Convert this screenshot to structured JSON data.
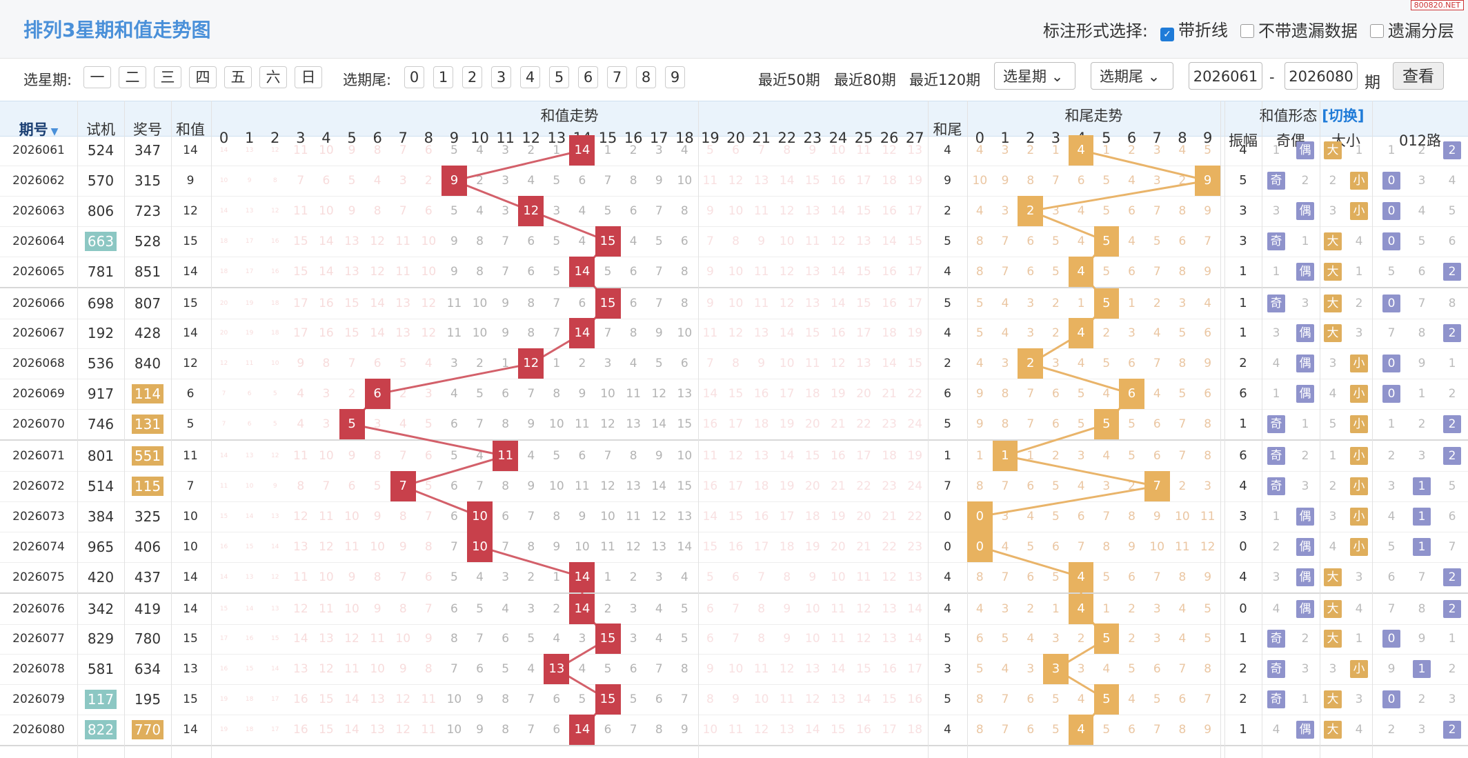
{
  "title": "排列3星期和值走势图",
  "site_badge": "800820.NET",
  "mark_type": {
    "label": "标注形式选择:",
    "options": [
      {
        "label": "带折线",
        "checked": true
      },
      {
        "label": "不带遗漏数据",
        "checked": false
      },
      {
        "label": "遗漏分层",
        "checked": false
      }
    ]
  },
  "filters": {
    "weekday_label": "选星期:",
    "weekdays": [
      "一",
      "二",
      "三",
      "四",
      "五",
      "六",
      "日"
    ],
    "tail_label": "选期尾:",
    "tails": [
      "0",
      "1",
      "2",
      "3",
      "4",
      "5",
      "6",
      "7",
      "8",
      "9"
    ],
    "recent": [
      "最近50期",
      "最近80期",
      "最近120期"
    ],
    "weekday_select": "选星期",
    "tail_select": "选期尾",
    "from": "2026061",
    "dash": "-",
    "to": "2026080",
    "period_suffix": "期",
    "go": "查看"
  },
  "headers": {
    "issue": "期号",
    "test": "试机",
    "prize": "奖号",
    "sum": "和值",
    "sum_trend": "和值走势",
    "sum_tail": "和尾",
    "tail_trend": "和尾走势",
    "shape": "和值形态",
    "switch": "[切换]",
    "amp": "振幅",
    "odd_even": "奇偶",
    "big_small": "大小",
    "route": "012路"
  },
  "sum_cols": [
    "0",
    "1",
    "2",
    "3",
    "4",
    "5",
    "6",
    "7",
    "8",
    "9",
    "10",
    "11",
    "12",
    "13",
    "14",
    "15",
    "16",
    "17",
    "18",
    "19",
    "20",
    "21",
    "22",
    "23",
    "24",
    "25",
    "26",
    "27"
  ],
  "tail_cols": [
    "0",
    "1",
    "2",
    "3",
    "4",
    "5",
    "6",
    "7",
    "8",
    "9"
  ],
  "rows": [
    {
      "issue": "2026061",
      "test": "524",
      "prize": "347",
      "sum": "14",
      "tail": "4",
      "amp": "4",
      "oe": "偶",
      "bs": "大",
      "route": "2"
    },
    {
      "issue": "2026062",
      "test": "570",
      "prize": "315",
      "sum": "9",
      "tail": "9",
      "amp": "5",
      "oe": "奇",
      "bs": "小",
      "route": "0"
    },
    {
      "issue": "2026063",
      "test": "806",
      "prize": "723",
      "sum": "12",
      "tail": "2",
      "amp": "3",
      "oe": "偶",
      "bs": "小",
      "route": "0"
    },
    {
      "issue": "2026064",
      "test": "663",
      "prize": "528",
      "sum": "15",
      "tail": "5",
      "amp": "3",
      "oe": "奇",
      "bs": "大",
      "route": "0",
      "test_hl": "teal"
    },
    {
      "issue": "2026065",
      "test": "781",
      "prize": "851",
      "sum": "14",
      "tail": "4",
      "amp": "1",
      "oe": "偶",
      "bs": "大",
      "route": "2"
    },
    {
      "issue": "2026066",
      "test": "698",
      "prize": "807",
      "sum": "15",
      "tail": "5",
      "amp": "1",
      "oe": "奇",
      "bs": "大",
      "route": "0"
    },
    {
      "issue": "2026067",
      "test": "192",
      "prize": "428",
      "sum": "14",
      "tail": "4",
      "amp": "1",
      "oe": "偶",
      "bs": "大",
      "route": "2"
    },
    {
      "issue": "2026068",
      "test": "536",
      "prize": "840",
      "sum": "12",
      "tail": "2",
      "amp": "2",
      "oe": "偶",
      "bs": "小",
      "route": "0"
    },
    {
      "issue": "2026069",
      "test": "917",
      "prize": "114",
      "sum": "6",
      "tail": "6",
      "amp": "6",
      "oe": "偶",
      "bs": "小",
      "route": "0",
      "prize_hl": "orange"
    },
    {
      "issue": "2026070",
      "test": "746",
      "prize": "131",
      "sum": "5",
      "tail": "5",
      "amp": "1",
      "oe": "奇",
      "bs": "小",
      "route": "2",
      "prize_hl": "orange"
    },
    {
      "issue": "2026071",
      "test": "801",
      "prize": "551",
      "sum": "11",
      "tail": "1",
      "amp": "6",
      "oe": "奇",
      "bs": "小",
      "route": "2",
      "prize_hl": "orange"
    },
    {
      "issue": "2026072",
      "test": "514",
      "prize": "115",
      "sum": "7",
      "tail": "7",
      "amp": "4",
      "oe": "奇",
      "bs": "小",
      "route": "1",
      "prize_hl": "orange"
    },
    {
      "issue": "2026073",
      "test": "384",
      "prize": "325",
      "sum": "10",
      "tail": "0",
      "amp": "3",
      "oe": "偶",
      "bs": "小",
      "route": "1"
    },
    {
      "issue": "2026074",
      "test": "965",
      "prize": "406",
      "sum": "10",
      "tail": "0",
      "amp": "0",
      "oe": "偶",
      "bs": "小",
      "route": "1"
    },
    {
      "issue": "2026075",
      "test": "420",
      "prize": "437",
      "sum": "14",
      "tail": "4",
      "amp": "4",
      "oe": "偶",
      "bs": "大",
      "route": "2"
    },
    {
      "issue": "2026076",
      "test": "342",
      "prize": "419",
      "sum": "14",
      "tail": "4",
      "amp": "0",
      "oe": "偶",
      "bs": "大",
      "route": "2"
    },
    {
      "issue": "2026077",
      "test": "829",
      "prize": "780",
      "sum": "15",
      "tail": "5",
      "amp": "1",
      "oe": "奇",
      "bs": "大",
      "route": "0"
    },
    {
      "issue": "2026078",
      "test": "581",
      "prize": "634",
      "sum": "13",
      "tail": "3",
      "amp": "2",
      "oe": "奇",
      "bs": "小",
      "route": "1"
    },
    {
      "issue": "2026079",
      "test": "117",
      "prize": "195",
      "sum": "15",
      "tail": "5",
      "amp": "2",
      "oe": "奇",
      "bs": "大",
      "route": "0",
      "test_hl": "teal"
    },
    {
      "issue": "2026080",
      "test": "822",
      "prize": "770",
      "sum": "14",
      "tail": "4",
      "amp": "1",
      "oe": "偶",
      "bs": "大",
      "route": "2",
      "test_hl": "teal",
      "prize_hl": "orange"
    }
  ],
  "colors": {
    "accent": "#4a90d9",
    "hit_red": "#c8404b",
    "hit_orange": "#e8b25f",
    "line_red": "#d3606a",
    "line_orange": "#e9b46a",
    "teal": "#8cc7c3",
    "tag_blue": "#8f93cc",
    "tag_orange": "#dfae5c",
    "header_bg": "#eaf3fb"
  }
}
